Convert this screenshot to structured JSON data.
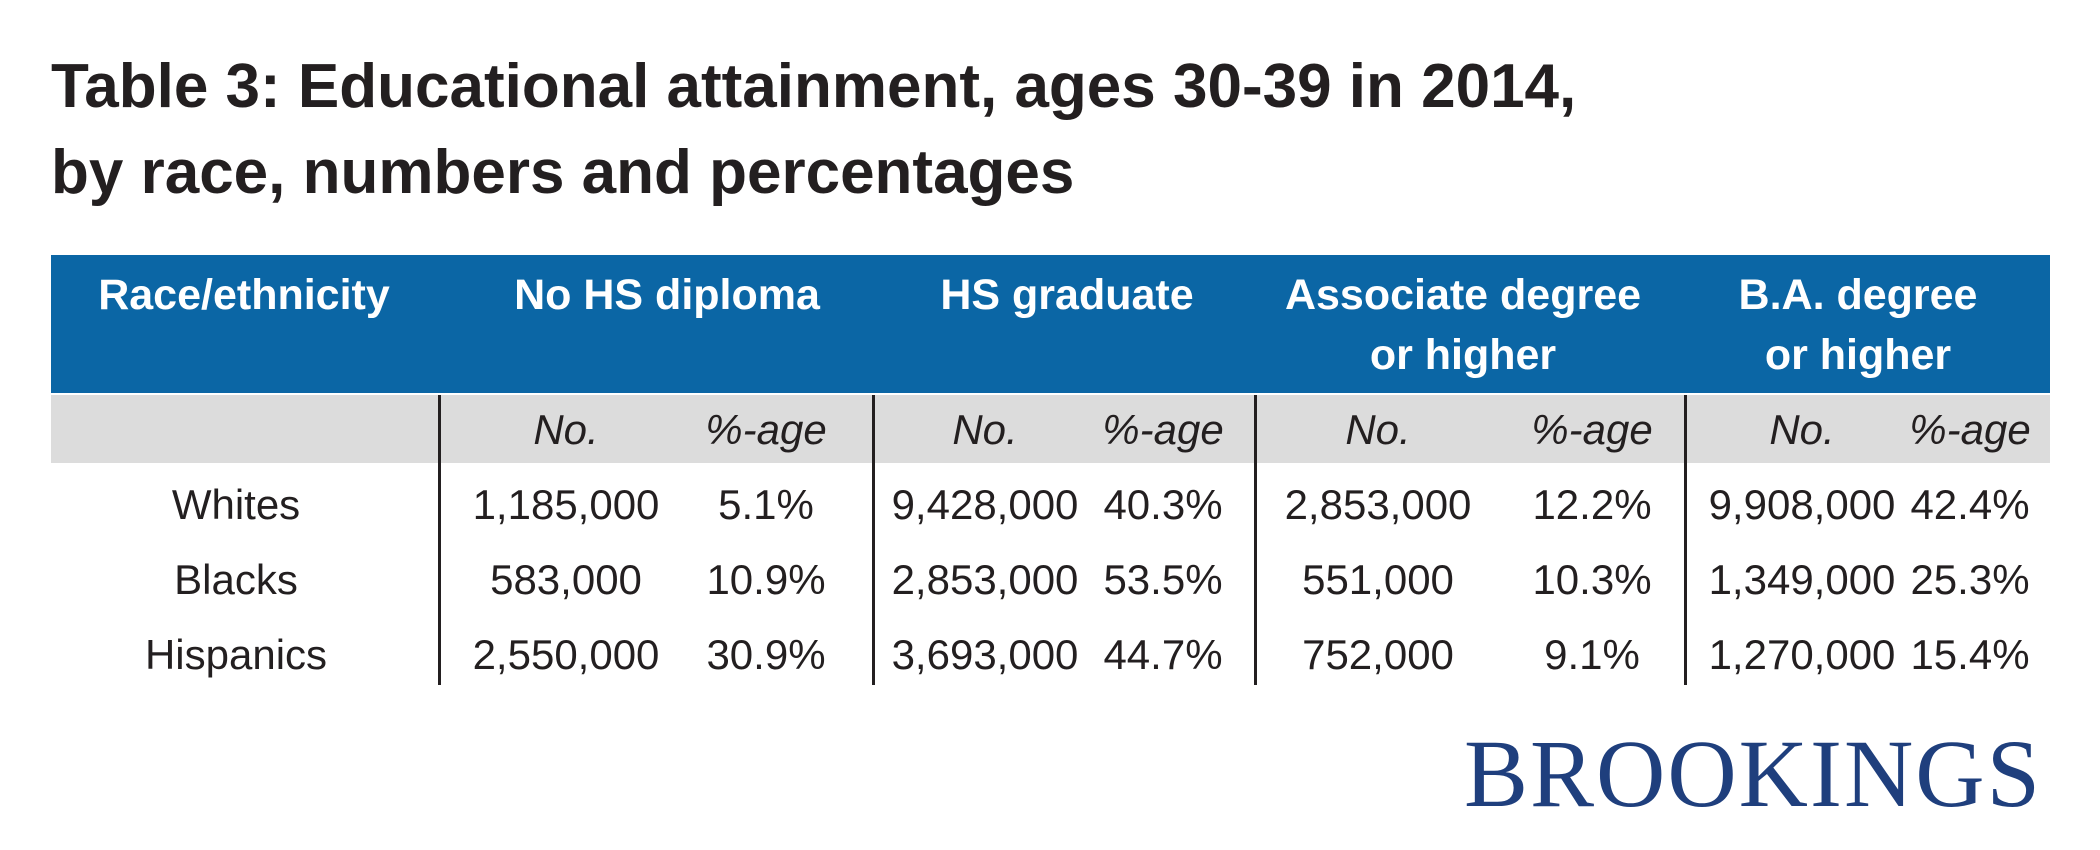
{
  "title": [
    "Table 3: Educational attainment, ages 30-39 in 2014,",
    "by race, numbers and percentages"
  ],
  "table": {
    "columns": [
      [
        "Race/ethnicity"
      ],
      [
        "No HS diploma"
      ],
      [
        "HS graduate"
      ],
      [
        "Associate degree",
        "or higher"
      ],
      [
        "B.A. degree",
        "or higher"
      ]
    ],
    "subheaders": [
      "No.",
      "%-age",
      "No.",
      "%-age",
      "No.",
      "%-age",
      "No.",
      "%-age"
    ],
    "rows": [
      {
        "label": "Whites",
        "values": [
          "1,185,000",
          "5.1%",
          "9,428,000",
          "40.3%",
          "2,853,000",
          "12.2%",
          "9,908,000",
          "42.4%"
        ]
      },
      {
        "label": "Blacks",
        "values": [
          "583,000",
          "10.9%",
          "2,853,000",
          "53.5%",
          "551,000",
          "10.3%",
          "1,349,000",
          "25.3%"
        ]
      },
      {
        "label": "Hispanics",
        "values": [
          "2,550,000",
          "30.9%",
          "3,693,000",
          "44.7%",
          "752,000",
          "9.1%",
          "1,270,000",
          "15.4%"
        ]
      }
    ]
  },
  "logo": "BROOKINGS"
}
